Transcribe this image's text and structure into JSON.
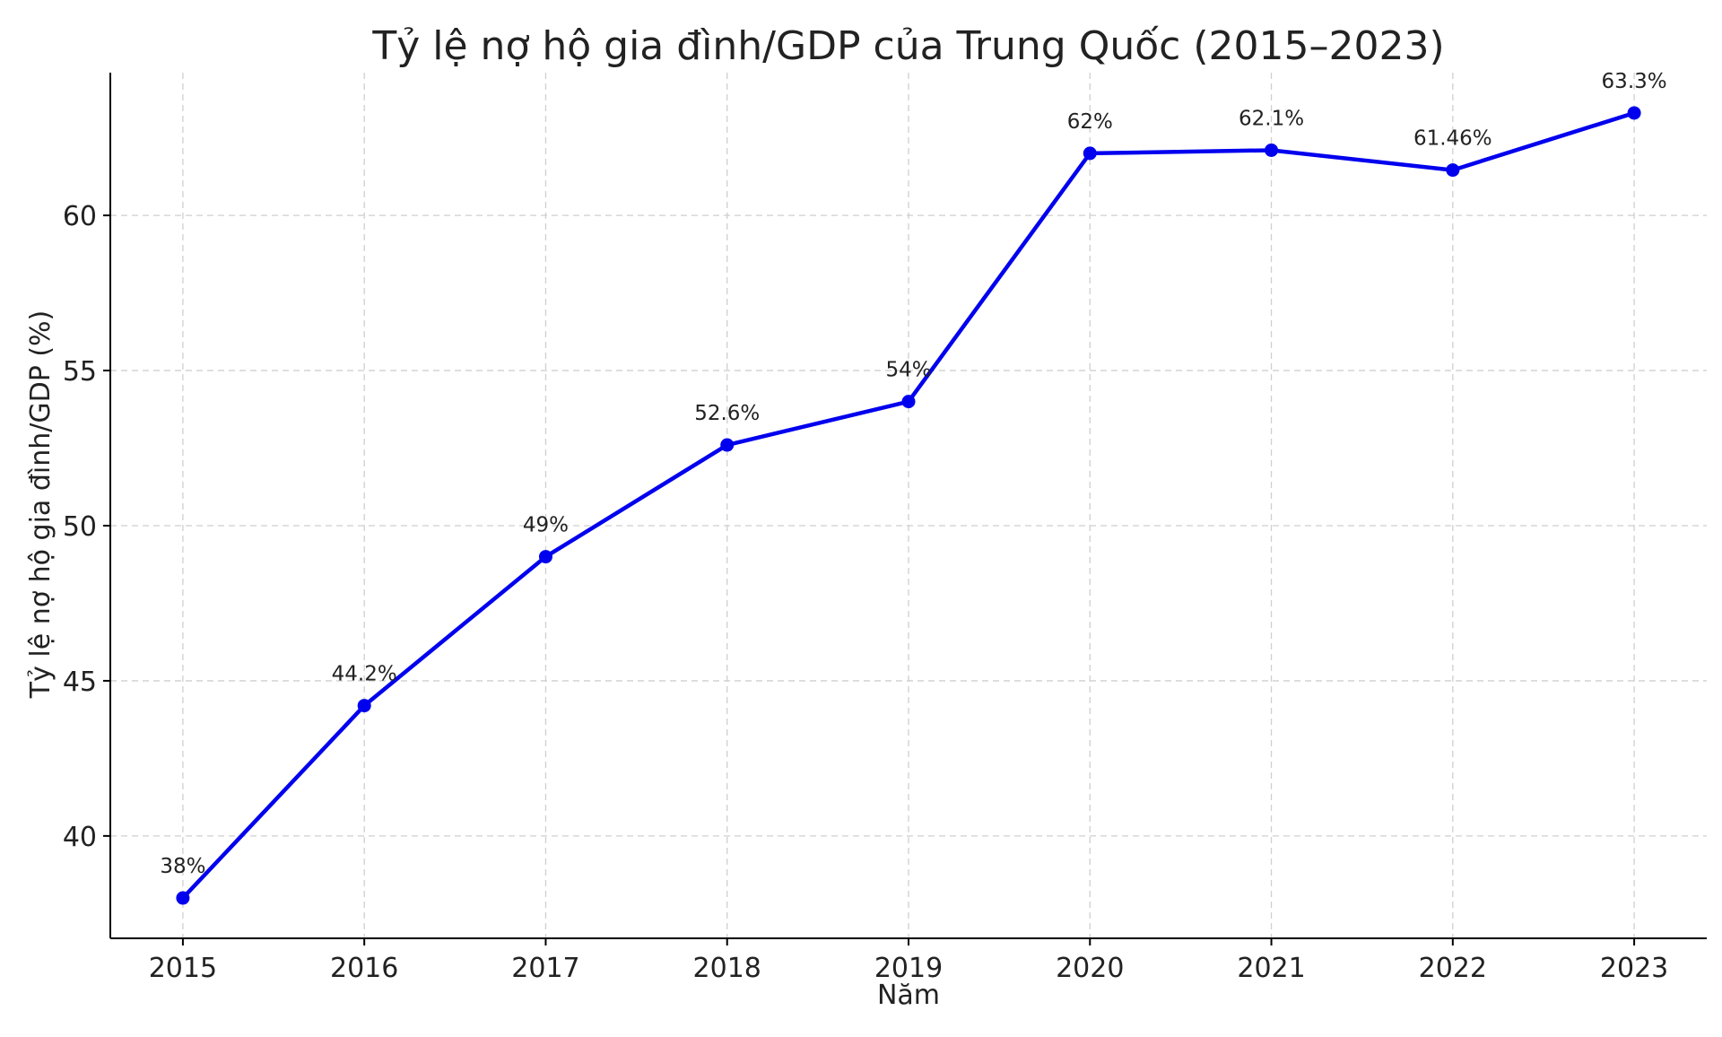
{
  "chart_data": {
    "type": "line",
    "title": "Tỷ lệ nợ hộ gia đình/GDP của Trung Quốc (2015–2023)",
    "xlabel": "Năm",
    "ylabel": "Tỷ lệ nợ hộ gia đình/GDP (%)",
    "x": [
      2015,
      2016,
      2017,
      2018,
      2019,
      2020,
      2021,
      2022,
      2023
    ],
    "x_tick_labels": [
      "2015",
      "2016",
      "2017",
      "2018",
      "2019",
      "2020",
      "2021",
      "2022",
      "2023"
    ],
    "y_ticks": [
      40,
      45,
      50,
      55,
      60
    ],
    "y_tick_labels": [
      "40",
      "45",
      "50",
      "55",
      "60"
    ],
    "xlim": [
      2014.6,
      2023.4
    ],
    "ylim": [
      36.7,
      64.6
    ],
    "grid": true,
    "legend": false,
    "series": [
      {
        "values": [
          38,
          44.2,
          49,
          52.6,
          54,
          62,
          62.1,
          61.46,
          63.3
        ],
        "data_labels": [
          "38%",
          "44.2%",
          "49%",
          "52.6%",
          "54%",
          "62%",
          "62.1%",
          "61.46%",
          "63.3%"
        ],
        "color": "#0000ee",
        "marker": "circle"
      }
    ]
  }
}
